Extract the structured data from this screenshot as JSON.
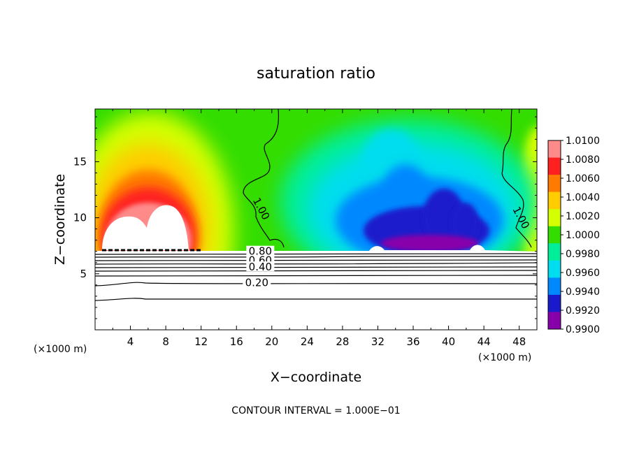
{
  "chart_data": {
    "type": "heatmap",
    "title": "saturation ratio",
    "xlabel": "X−coordinate",
    "ylabel": "Z−coordinate",
    "x_unit_left": "(×1000 m)",
    "x_unit_right": "(×1000 m)",
    "footer": "CONTOUR INTERVAL = 1.000E−01",
    "xlim": [
      0,
      50
    ],
    "ylim": [
      0,
      19.7
    ],
    "x_ticks": [
      "4",
      "8",
      "12",
      "16",
      "20",
      "24",
      "28",
      "32",
      "36",
      "40",
      "44",
      "48"
    ],
    "y_ticks": [
      "5",
      "10",
      "15"
    ],
    "x_tick_values": [
      4,
      8,
      12,
      16,
      20,
      24,
      28,
      32,
      36,
      40,
      44,
      48
    ],
    "y_tick_values": [
      5,
      10,
      15
    ],
    "colorbar": {
      "labels": [
        "1.0100",
        "1.0080",
        "1.0060",
        "1.0040",
        "1.0020",
        "1.0000",
        "0.9980",
        "0.9960",
        "0.9940",
        "0.9920",
        "0.9900"
      ],
      "values": [
        1.01,
        1.008,
        1.006,
        1.004,
        1.002,
        1.0,
        0.998,
        0.996,
        0.994,
        0.992,
        0.99
      ],
      "colors": [
        "#ff8a8a",
        "#ff2020",
        "#ff7a00",
        "#ffcc00",
        "#d4ff00",
        "#33dd00",
        "#00ee9a",
        "#00ddee",
        "#0088ff",
        "#1a1acc",
        "#8800aa"
      ]
    },
    "contour_labels": [
      {
        "text": "1.00",
        "x": 18.8,
        "z": 10.8
      },
      {
        "text": "1.00",
        "x": 48.2,
        "z": 10.0
      },
      {
        "text": "0.80",
        "x": 18.7,
        "z": 7.0
      },
      {
        "text": "0.60",
        "x": 18.7,
        "z": 6.2
      },
      {
        "text": "0.40",
        "x": 18.7,
        "z": 5.6
      },
      {
        "text": "0.20",
        "x": 18.3,
        "z": 4.2
      }
    ],
    "contour_levels": [
      0.2,
      0.4,
      0.6,
      0.8,
      1.0
    ],
    "interval": 0.1,
    "grid": false
  }
}
